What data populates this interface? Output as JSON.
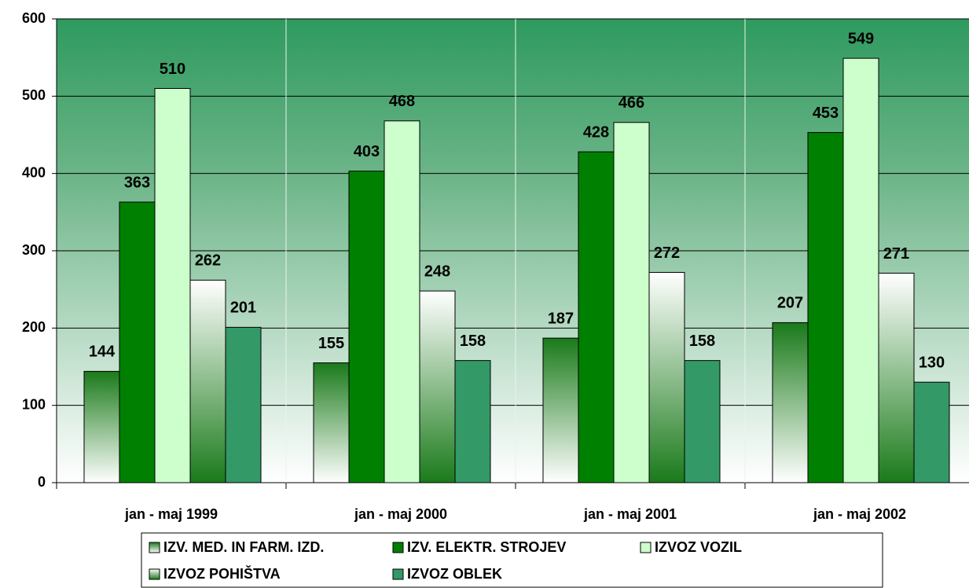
{
  "chart_data": {
    "type": "bar",
    "categories": [
      "jan - maj 1999",
      "jan - maj 2000",
      "jan - maj 2001",
      "jan - maj 2002"
    ],
    "series": [
      {
        "name": "IZV. MED. IN FARM. IZD.",
        "color": "#1a7a1a",
        "fill_style": "fade-down",
        "values": [
          144,
          155,
          187,
          207
        ]
      },
      {
        "name": "IZV. ELEKTR. STROJEV",
        "color": "#008000",
        "fill_style": "solid",
        "values": [
          363,
          403,
          428,
          453
        ]
      },
      {
        "name": "IZVOZ VOZIL",
        "color": "#ccffcc",
        "fill_style": "solid",
        "values": [
          510,
          468,
          466,
          549
        ]
      },
      {
        "name": "IZVOZ POHIŠTVA",
        "color": "#1a7a1a",
        "fill_style": "fade-up",
        "values": [
          262,
          248,
          272,
          271
        ]
      },
      {
        "name": "IZVOZ OBLEK",
        "color": "#339966",
        "fill_style": "solid",
        "values": [
          201,
          158,
          158,
          130
        ]
      }
    ],
    "ylim": [
      0,
      600
    ],
    "yticks": [
      0,
      100,
      200,
      300,
      400,
      500,
      600
    ],
    "grid": true,
    "legend": "bottom"
  }
}
